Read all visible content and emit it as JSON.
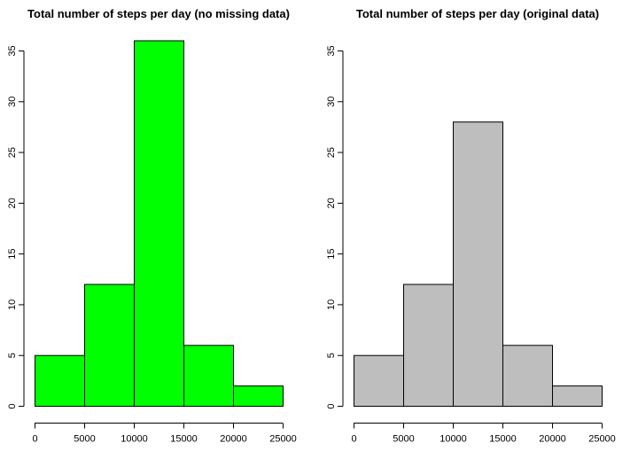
{
  "chart_data": [
    {
      "type": "bar",
      "title": "Total number of steps per day (no missing data)",
      "xlabel": "",
      "ylabel": "",
      "bin_edges": [
        0,
        5000,
        10000,
        15000,
        20000,
        25000
      ],
      "values": [
        5,
        12,
        36,
        6,
        2
      ],
      "xlim": [
        0,
        25000
      ],
      "ylim": [
        0,
        35
      ],
      "x_ticks": [
        0,
        5000,
        10000,
        15000,
        20000,
        25000
      ],
      "y_ticks": [
        0,
        5,
        10,
        15,
        20,
        25,
        30,
        35
      ],
      "bar_color": "#00ff00",
      "grid": false
    },
    {
      "type": "bar",
      "title": "Total number of steps per day (original data)",
      "xlabel": "",
      "ylabel": "",
      "bin_edges": [
        0,
        5000,
        10000,
        15000,
        20000,
        25000
      ],
      "values": [
        5,
        12,
        28,
        6,
        2
      ],
      "xlim": [
        0,
        25000
      ],
      "ylim": [
        0,
        35
      ],
      "x_ticks": [
        0,
        5000,
        10000,
        15000,
        20000,
        25000
      ],
      "y_ticks": [
        0,
        5,
        10,
        15,
        20,
        25,
        30,
        35
      ],
      "bar_color": "#bebebe",
      "grid": false
    }
  ]
}
